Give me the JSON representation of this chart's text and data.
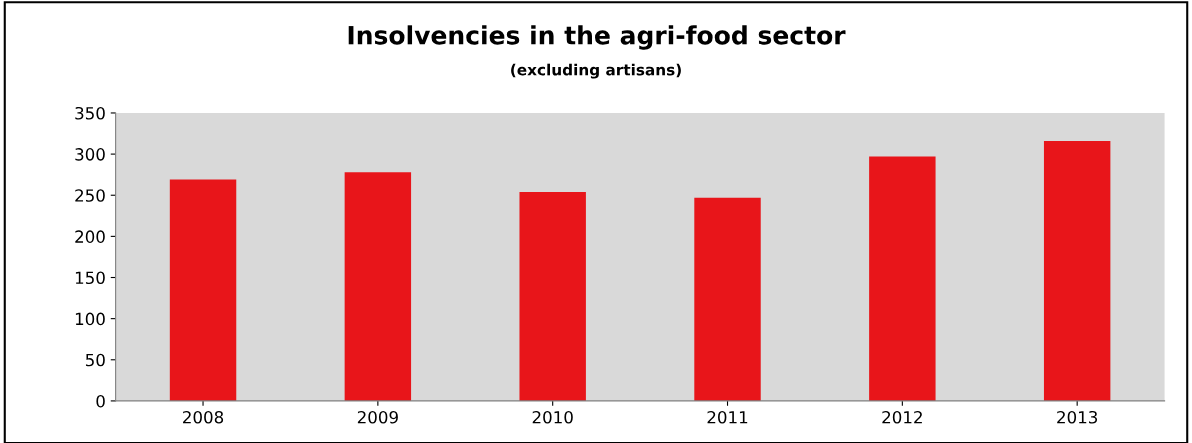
{
  "chart_data": {
    "type": "bar",
    "title": "Insolvencies in the agri-food sector",
    "subtitle": "(excluding artisans)",
    "categories": [
      "2008",
      "2009",
      "2010",
      "2011",
      "2012",
      "2013"
    ],
    "values": [
      269,
      278,
      254,
      247,
      297,
      316
    ],
    "color": "#e8151a",
    "ylim": [
      0,
      350
    ],
    "yticks": [
      0,
      50,
      100,
      150,
      200,
      250,
      300,
      350
    ],
    "grid": false
  }
}
